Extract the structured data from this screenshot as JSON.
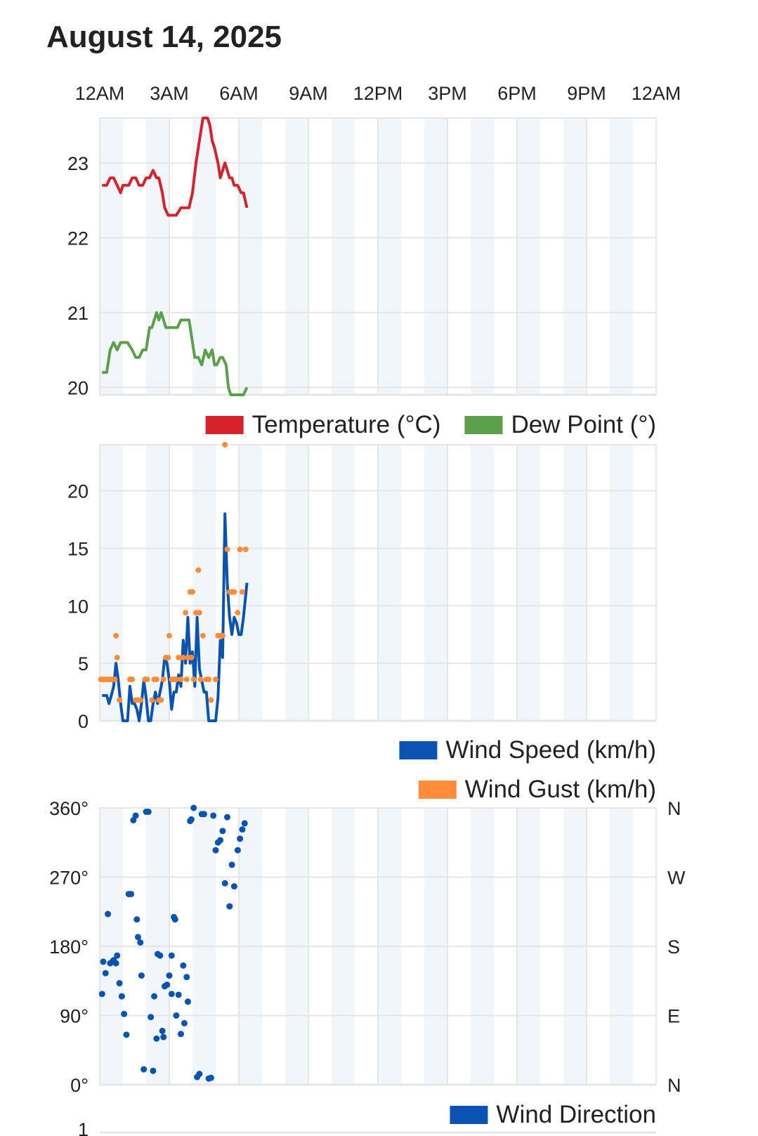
{
  "title": "August 14, 2025",
  "colors": {
    "temperature": "#d7222e",
    "dew_point": "#5ca14a",
    "wind_speed": "#0a53b3",
    "wind_gust": "#ff8c38",
    "wind_direction": "#0a53b3",
    "band": "#f1f6fb",
    "grid": "#e6e6e6"
  },
  "x_ticks": [
    "12AM",
    "3AM",
    "6AM",
    "9AM",
    "12PM",
    "3PM",
    "6PM",
    "9PM",
    "12AM"
  ],
  "chart_data": [
    {
      "type": "line",
      "xlabel": "",
      "ylabel": "",
      "x_unit": "hour of day",
      "xlim": [
        0,
        24
      ],
      "ylim": [
        19.9,
        23.6
      ],
      "yticks": [
        {
          "value": 20,
          "label": "20"
        },
        {
          "value": 21,
          "label": "21"
        },
        {
          "value": 22,
          "label": "22"
        },
        {
          "value": 23,
          "label": "23"
        }
      ],
      "grid": true,
      "legend": "bottom-right",
      "series": [
        {
          "name": "Temperature (°C)",
          "color": "#d7222e",
          "x": [
            0.1,
            0.3,
            0.45,
            0.6,
            0.75,
            0.9,
            1.0,
            1.1,
            1.25,
            1.4,
            1.55,
            1.7,
            1.85,
            2.0,
            2.15,
            2.3,
            2.45,
            2.55,
            2.7,
            2.8,
            2.95,
            3.1,
            3.2,
            3.3,
            3.5,
            3.7,
            3.85,
            4.0,
            4.15,
            4.3,
            4.45,
            4.55,
            4.65,
            4.75,
            4.85,
            4.95,
            5.1,
            5.2,
            5.3,
            5.4,
            5.5,
            5.6,
            5.7,
            5.8,
            5.95,
            6.1,
            6.2,
            6.35
          ],
          "y": [
            22.7,
            22.7,
            22.8,
            22.8,
            22.7,
            22.6,
            22.7,
            22.7,
            22.7,
            22.8,
            22.8,
            22.7,
            22.7,
            22.8,
            22.8,
            22.9,
            22.8,
            22.8,
            22.6,
            22.4,
            22.3,
            22.3,
            22.3,
            22.3,
            22.4,
            22.4,
            22.4,
            22.6,
            23.0,
            23.3,
            23.6,
            23.6,
            23.6,
            23.5,
            23.3,
            23.2,
            23.0,
            22.8,
            22.9,
            23.0,
            22.9,
            22.8,
            22.8,
            22.7,
            22.7,
            22.6,
            22.6,
            22.4
          ]
        },
        {
          "name": "Dew Point (°)",
          "color": "#5ca14a",
          "x": [
            0.1,
            0.3,
            0.45,
            0.6,
            0.75,
            0.9,
            1.0,
            1.2,
            1.4,
            1.55,
            1.7,
            1.85,
            2.0,
            2.15,
            2.25,
            2.35,
            2.45,
            2.55,
            2.65,
            2.75,
            2.85,
            2.95,
            3.1,
            3.2,
            3.35,
            3.5,
            3.65,
            3.85,
            4.0,
            4.1,
            4.25,
            4.4,
            4.55,
            4.7,
            4.85,
            4.95,
            5.05,
            5.2,
            5.3,
            5.45,
            5.55,
            5.65,
            5.75,
            5.85,
            6.0,
            6.1,
            6.2,
            6.35
          ],
          "y": [
            20.2,
            20.2,
            20.5,
            20.6,
            20.5,
            20.6,
            20.6,
            20.6,
            20.5,
            20.4,
            20.4,
            20.5,
            20.5,
            20.8,
            20.8,
            20.9,
            21.0,
            20.9,
            21.0,
            20.9,
            20.8,
            20.8,
            20.8,
            20.8,
            20.8,
            20.9,
            20.9,
            20.9,
            20.6,
            20.4,
            20.4,
            20.3,
            20.5,
            20.4,
            20.5,
            20.3,
            20.3,
            20.4,
            20.4,
            20.3,
            20.0,
            19.9,
            19.9,
            19.9,
            19.9,
            19.9,
            19.9,
            20.0
          ]
        }
      ]
    },
    {
      "type": "line",
      "xlabel": "",
      "ylabel": "",
      "x_unit": "hour of day",
      "xlim": [
        0,
        24
      ],
      "ylim": [
        0,
        24
      ],
      "yticks": [
        {
          "value": 0,
          "label": "0"
        },
        {
          "value": 5,
          "label": "5"
        },
        {
          "value": 10,
          "label": "10"
        },
        {
          "value": 15,
          "label": "15"
        },
        {
          "value": 20,
          "label": "20"
        }
      ],
      "grid": true,
      "legend": "bottom-right",
      "series": [
        {
          "name": "Wind Speed (km/h)",
          "color": "#0a53b3",
          "x": [
            0.1,
            0.3,
            0.4,
            0.5,
            0.6,
            0.7,
            0.8,
            0.9,
            1.0,
            1.1,
            1.2,
            1.3,
            1.4,
            1.5,
            1.6,
            1.7,
            1.8,
            1.9,
            2.0,
            2.1,
            2.2,
            2.3,
            2.4,
            2.5,
            2.6,
            2.7,
            2.8,
            2.9,
            3.0,
            3.1,
            3.2,
            3.3,
            3.4,
            3.5,
            3.6,
            3.7,
            3.8,
            3.9,
            4.0,
            4.1,
            4.2,
            4.3,
            4.4,
            4.5,
            4.6,
            4.7,
            4.8,
            4.9,
            5.0,
            5.1,
            5.2,
            5.3,
            5.4,
            5.5,
            5.6,
            5.7,
            5.8,
            5.9,
            6.0,
            6.1,
            6.2,
            6.3,
            6.35
          ],
          "y": [
            2.2,
            2.2,
            1.5,
            2.2,
            3.0,
            5.0,
            3.5,
            1.5,
            0,
            0,
            0,
            3.0,
            1.5,
            1.5,
            1.0,
            0,
            1.5,
            3.5,
            2.0,
            0,
            0,
            1.5,
            2.5,
            1.5,
            2.5,
            3.5,
            5.5,
            5.0,
            3.5,
            1.0,
            2.5,
            2.5,
            4.0,
            3.0,
            7.0,
            5.0,
            9.0,
            5.0,
            6.0,
            3.0,
            9.0,
            4.5,
            3.5,
            2.5,
            2.5,
            0,
            0,
            0,
            0,
            2.0,
            7.0,
            5.5,
            18.0,
            12.0,
            9.0,
            7.5,
            9.0,
            8.5,
            7.5,
            7.5,
            9.0,
            11.0,
            12.0
          ]
        },
        {
          "name": "Wind Gust (km/h)",
          "color": "#ff8c38",
          "mode": "markers",
          "x": [
            0.05,
            0.15,
            0.25,
            0.35,
            0.45,
            0.55,
            0.65,
            0.7,
            0.75,
            0.85,
            1.3,
            1.4,
            1.55,
            1.65,
            1.75,
            1.95,
            2.05,
            2.25,
            2.35,
            2.45,
            2.55,
            2.65,
            2.75,
            2.85,
            2.95,
            3.0,
            3.1,
            3.2,
            3.3,
            3.4,
            3.5,
            3.6,
            3.7,
            3.75,
            3.8,
            3.9,
            3.95,
            4.0,
            4.05,
            4.15,
            4.25,
            4.3,
            4.35,
            4.45,
            4.6,
            4.7,
            4.8,
            5.0,
            5.1,
            5.2,
            5.3,
            5.4,
            5.5,
            5.6,
            5.7,
            5.8,
            5.95,
            6.05,
            6.15,
            6.3
          ],
          "y": [
            3.6,
            3.6,
            3.6,
            3.6,
            3.6,
            3.6,
            3.6,
            7.4,
            5.5,
            1.8,
            3.6,
            3.6,
            1.8,
            1.8,
            1.8,
            3.6,
            3.6,
            1.8,
            3.6,
            3.6,
            1.8,
            1.8,
            3.6,
            5.5,
            5.5,
            7.4,
            3.6,
            3.6,
            3.6,
            5.5,
            3.6,
            5.5,
            9.4,
            3.6,
            5.5,
            11.2,
            5.5,
            11.2,
            3.6,
            9.4,
            13.1,
            9.4,
            3.6,
            7.4,
            3.6,
            3.6,
            1.8,
            3.6,
            7.4,
            7.4,
            7.4,
            24.0,
            14.9,
            11.2,
            11.2,
            11.2,
            9.4,
            14.9,
            11.2,
            14.9
          ]
        }
      ]
    },
    {
      "type": "scatter",
      "xlabel": "",
      "ylabel": "",
      "x_unit": "hour of day",
      "xlim": [
        0,
        24
      ],
      "ylim": [
        0,
        360
      ],
      "yticks": [
        {
          "value": 0,
          "label": "0°"
        },
        {
          "value": 90,
          "label": "90°"
        },
        {
          "value": 180,
          "label": "180°"
        },
        {
          "value": 270,
          "label": "270°"
        },
        {
          "value": 360,
          "label": "360°"
        }
      ],
      "y2ticks": [
        {
          "value": 0,
          "label": "N"
        },
        {
          "value": 90,
          "label": "E"
        },
        {
          "value": 180,
          "label": "S"
        },
        {
          "value": 270,
          "label": "W"
        },
        {
          "value": 360,
          "label": "N"
        }
      ],
      "grid": true,
      "legend": "bottom-right",
      "series": [
        {
          "name": "Wind Direction",
          "color": "#0a53b3",
          "x": [
            0.1,
            0.15,
            0.25,
            0.35,
            0.45,
            0.55,
            0.6,
            0.7,
            0.75,
            0.85,
            0.95,
            1.05,
            1.15,
            1.25,
            1.35,
            1.45,
            1.55,
            1.6,
            1.65,
            1.75,
            1.8,
            1.9,
            2.0,
            2.1,
            2.2,
            2.3,
            2.35,
            2.45,
            2.5,
            2.6,
            2.7,
            2.75,
            2.8,
            2.9,
            3.0,
            3.1,
            3.1,
            3.2,
            3.25,
            3.3,
            3.4,
            3.5,
            3.6,
            3.65,
            3.75,
            3.8,
            3.9,
            3.95,
            4.05,
            4.2,
            4.3,
            4.4,
            4.5,
            4.7,
            4.8,
            4.9,
            5.0,
            5.1,
            5.2,
            5.3,
            5.4,
            5.5,
            5.6,
            5.7,
            5.8,
            5.95,
            6.05,
            6.15,
            6.25
          ],
          "y": [
            118,
            160,
            145,
            222,
            158,
            160,
            162,
            158,
            168,
            132,
            115,
            92,
            65,
            248,
            248,
            344,
            350,
            215,
            192,
            185,
            142,
            20,
            355,
            355,
            88,
            18,
            115,
            60,
            170,
            168,
            70,
            62,
            128,
            130,
            142,
            168,
            118,
            218,
            215,
            90,
            117,
            66,
            155,
            80,
            140,
            108,
            343,
            345,
            360,
            10,
            14,
            352,
            352,
            8,
            9,
            350,
            305,
            315,
            318,
            330,
            262,
            348,
            232,
            286,
            258,
            305,
            320,
            332,
            340
          ]
        }
      ]
    }
  ]
}
